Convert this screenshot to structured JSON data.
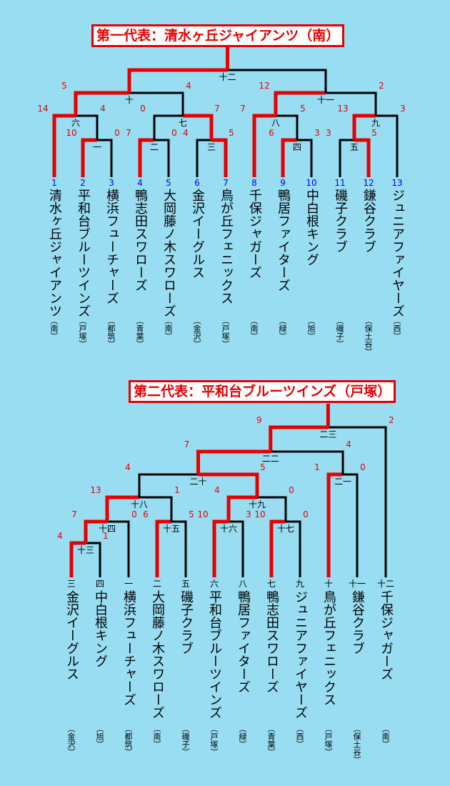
{
  "brackets": [
    {
      "title": "第一代表：清水ヶ丘ジャイアンツ（南）",
      "teams": [
        {
          "seed": "1",
          "name": "清水ヶ丘ジャイアンツ",
          "area": "（南）"
        },
        {
          "seed": "2",
          "name": "平和台ブルーツインズ",
          "area": "（戸塚）"
        },
        {
          "seed": "3",
          "name": "横浜フューチャーズ",
          "area": "（都筑）"
        },
        {
          "seed": "4",
          "name": "鴨志田スワローズ",
          "area": "（青葉）"
        },
        {
          "seed": "5",
          "name": "大岡藤ノ木スワローズ",
          "area": "（南）"
        },
        {
          "seed": "6",
          "name": "金沢イーグルス",
          "area": "（金沢）"
        },
        {
          "seed": "7",
          "name": "鳥が丘フェニックス",
          "area": "（戸塚）"
        },
        {
          "seed": "8",
          "name": "千保ジャガーズ",
          "area": "（南）"
        },
        {
          "seed": "9",
          "name": "鴨居ファイターズ",
          "area": "（緑）"
        },
        {
          "seed": "10",
          "name": "中白根キング",
          "area": "（旭）"
        },
        {
          "seed": "11",
          "name": "磯子クラブ",
          "area": "（磯子）"
        },
        {
          "seed": "12",
          "name": "鎌谷クラブ",
          "area": "（保土谷）"
        },
        {
          "seed": "13",
          "name": "ジュニアファイヤーズ",
          "area": "（西）"
        }
      ],
      "matches": [
        {
          "label": "一",
          "scores": [
            "10",
            "0"
          ]
        },
        {
          "label": "二",
          "scores": [
            "7",
            "0"
          ]
        },
        {
          "label": "三",
          "scores": [
            "4",
            "5"
          ]
        },
        {
          "label": "四",
          "scores": [
            "6",
            "3"
          ]
        },
        {
          "label": "五",
          "scores": [
            "3",
            "5"
          ]
        },
        {
          "label": "六",
          "scores": [
            "14",
            "4"
          ]
        },
        {
          "label": "七",
          "scores": [
            "0",
            "7"
          ]
        },
        {
          "label": "八",
          "scores": [
            "7",
            "5"
          ]
        },
        {
          "label": "九",
          "scores": [
            "13",
            "3"
          ]
        },
        {
          "label": "十",
          "scores": [
            "5",
            "4"
          ]
        },
        {
          "label": "十一",
          "scores": [
            "12",
            "2"
          ]
        },
        {
          "label": "十二",
          "scores": []
        }
      ]
    },
    {
      "title": "第二代表：平和台ブルーツインズ（戸塚）",
      "teams": [
        {
          "seed": "三",
          "name": "金沢イーグルス",
          "area": "（金沢）"
        },
        {
          "seed": "四",
          "name": "中白根キング",
          "area": "（旭）"
        },
        {
          "seed": "一",
          "name": "横浜フューチャーズ",
          "area": "（都筑）"
        },
        {
          "seed": "二",
          "name": "大岡藤ノ木スワローズ",
          "area": "（南）"
        },
        {
          "seed": "五",
          "name": "磯子クラブ",
          "area": "（磯子）"
        },
        {
          "seed": "六",
          "name": "平和台ブルーツインズ",
          "area": "（戸塚）"
        },
        {
          "seed": "八",
          "name": "鴨居ファイターズ",
          "area": "（緑）"
        },
        {
          "seed": "七",
          "name": "鴨志田スワローズ",
          "area": "（青葉）"
        },
        {
          "seed": "九",
          "name": "ジュニアファイヤーズ",
          "area": "（西）"
        },
        {
          "seed": "十",
          "name": "鳥が丘フェニックス",
          "area": "（戸塚）"
        },
        {
          "seed": "十一",
          "name": "鎌谷クラブ",
          "area": "（保土谷）"
        },
        {
          "seed": "十二",
          "name": "千保ジャガーズ",
          "area": "（南）"
        }
      ],
      "matches": [
        {
          "label": "十三",
          "scores": [
            "4",
            "1"
          ]
        },
        {
          "label": "十四",
          "scores": [
            "7",
            "0"
          ]
        },
        {
          "label": "十五",
          "scores": [
            "6",
            "5"
          ]
        },
        {
          "label": "十六",
          "scores": [
            "10",
            "3"
          ]
        },
        {
          "label": "十七",
          "scores": [
            "10",
            "0"
          ]
        },
        {
          "label": "十八",
          "scores": [
            "13",
            "1"
          ]
        },
        {
          "label": "十九",
          "scores": [
            "4",
            "0"
          ]
        },
        {
          "label": "二十",
          "scores": [
            "4",
            "5"
          ]
        },
        {
          "label": "二一",
          "scores": [
            "1",
            "0"
          ]
        },
        {
          "label": "二二",
          "scores": [
            "7",
            "4"
          ]
        },
        {
          "label": "二三",
          "scores": [
            "9",
            "2"
          ]
        }
      ]
    }
  ],
  "colors": {
    "background": "#99ddf2",
    "winner_line": "#e60000",
    "loser_line": "#000000",
    "seed_number": "#0000ff",
    "score": "#e60000"
  }
}
